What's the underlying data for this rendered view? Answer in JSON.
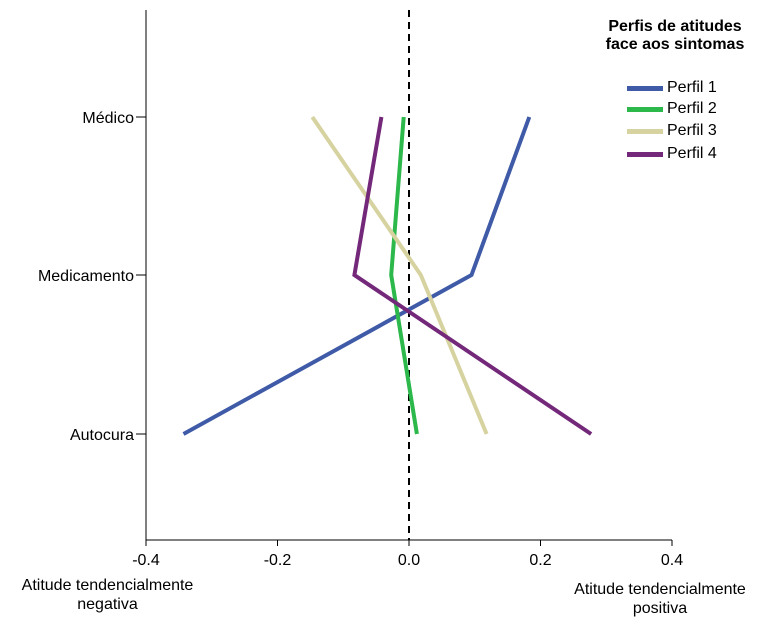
{
  "chart_data": {
    "type": "line",
    "title": "",
    "xlabel_left": "Atitude tendencialmente negativa",
    "xlabel_right": "Atitude tendencialmente positiva",
    "ylabel": "",
    "xlim": [
      -0.4,
      0.4
    ],
    "x_ticks": [
      "-0.4",
      "-0.2",
      "0.0",
      "0.2",
      "0.4"
    ],
    "x_tick_values": [
      -0.4,
      -0.2,
      0.0,
      0.2,
      0.4
    ],
    "categories": [
      "Médico",
      "Medicamento",
      "Autocura"
    ],
    "reference_line": {
      "x": 0.0,
      "style": "dashed"
    },
    "grid": false,
    "legend": {
      "title": "Perfis de atitudes face aos sintomas",
      "position": "top-right"
    },
    "series": [
      {
        "name": "Perfil 1",
        "color": "#3f5ba8",
        "values": [
          0.183,
          0.095,
          -0.343
        ]
      },
      {
        "name": "Perfil 2",
        "color": "#2cb84a",
        "values": [
          -0.008,
          -0.027,
          0.012
        ]
      },
      {
        "name": "Perfil 3",
        "color": "#d6d3a0",
        "values": [
          -0.147,
          0.018,
          0.118
        ]
      },
      {
        "name": "Perfil 4",
        "color": "#73287a",
        "values": [
          -0.042,
          -0.083,
          0.277
        ]
      }
    ]
  }
}
